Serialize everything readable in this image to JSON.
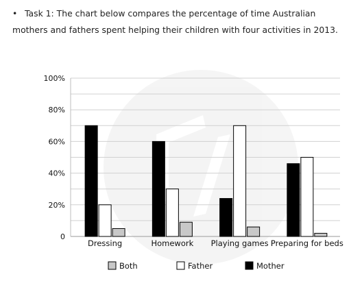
{
  "task": {
    "bullet": "•",
    "text": "Task 1: The chart below compares the percentage of time Australian mothers and fathers spent helping their children with four activities in 2013."
  },
  "chart_data": {
    "type": "bar",
    "title": "",
    "xlabel": "",
    "ylabel": "",
    "ylim": [
      0,
      100
    ],
    "ytick_labels": [
      "0",
      "20%",
      "40%",
      "60%",
      "80%",
      "100%"
    ],
    "categories": [
      "Dressing",
      "Homework",
      "Playing games",
      "Preparing for beds"
    ],
    "series": [
      {
        "name": "Mother",
        "color": "#000000",
        "values": [
          70,
          60,
          24,
          46
        ]
      },
      {
        "name": "Father",
        "color": "#ffffff",
        "values": [
          20,
          30,
          70,
          50
        ]
      },
      {
        "name": "Both",
        "color": "#c8c8c8",
        "values": [
          5,
          9,
          6,
          2
        ]
      }
    ],
    "legend": {
      "placement": "bottom",
      "order": [
        "Both",
        "Father",
        "Mother"
      ]
    },
    "grid": true
  }
}
